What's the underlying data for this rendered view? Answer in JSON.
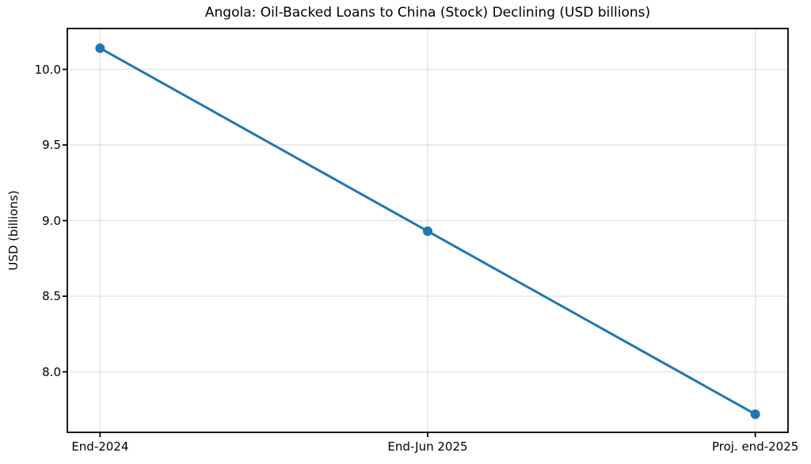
{
  "chart_data": {
    "type": "line",
    "title": "Angola: Oil-Backed Loans to China (Stock) Declining (USD billions)",
    "ylabel": "USD (billions)",
    "xlabel": "",
    "categories": [
      "End-2024",
      "End-Jun 2025",
      "Proj. end-2025"
    ],
    "values": [
      10.14,
      8.93,
      7.72
    ],
    "ylim": [
      7.6,
      10.27
    ],
    "xlim": [
      -0.1,
      2.1
    ],
    "yticks": [
      8.0,
      8.5,
      9.0,
      9.5,
      10.0
    ],
    "ytick_labels": [
      "8.0",
      "8.5",
      "9.0",
      "9.5",
      "10.0"
    ],
    "grid": true,
    "legend": false,
    "line_color": "#1f77b4",
    "marker": "circle",
    "marker_radius": 6,
    "line_width": 3,
    "grid_color": "#b0b0b0",
    "spine_color": "#000000",
    "text_color": "#000000",
    "background_color": "#ffffff"
  }
}
